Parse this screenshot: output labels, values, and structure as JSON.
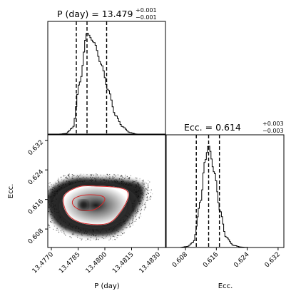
{
  "chart_data": [
    {
      "panel": "histogram-period",
      "type": "histogram",
      "title": {
        "label": "P (day)",
        "value": "13.479",
        "plus": "+0.001",
        "minus": "−0.001"
      },
      "x": [
        13.4774,
        13.4778,
        13.4782,
        13.4786,
        13.479,
        13.4794,
        13.4798,
        13.4802,
        13.4806,
        13.481,
        13.4814,
        13.4818
      ],
      "density": [
        0.0,
        0.005,
        0.06,
        0.5,
        0.97,
        0.88,
        0.67,
        0.42,
        0.18,
        0.07,
        0.015,
        0.0
      ],
      "quantiles": [
        13.4784,
        13.479,
        13.4801
      ],
      "xlim": [
        13.4768,
        13.4834
      ]
    },
    {
      "panel": "histogram-ecc",
      "type": "histogram",
      "title": {
        "label": "Ecc.",
        "value": "0.614",
        "plus": "+0.003",
        "minus": "−0.003"
      },
      "x": [
        0.6065,
        0.6085,
        0.61,
        0.612,
        0.613,
        0.614,
        0.6155,
        0.617,
        0.6185,
        0.6205,
        0.6225,
        0.6245
      ],
      "density": [
        0.0,
        0.01,
        0.05,
        0.45,
        0.82,
        0.98,
        0.72,
        0.35,
        0.1,
        0.02,
        0.004,
        0.0
      ],
      "quantiles": [
        0.6108,
        0.614,
        0.6168
      ],
      "xlim": [
        0.603,
        0.6335
      ],
      "xticks": [
        "0.608",
        "0.616",
        "0.624",
        "0.632"
      ],
      "xlabel": "Ecc."
    },
    {
      "panel": "joint-density",
      "type": "scatter",
      "xlabel": "P (day)",
      "ylabel": "Ecc.",
      "xlim": [
        13.4768,
        13.4834
      ],
      "ylim": [
        0.603,
        0.6335
      ],
      "xticks": [
        "13.4770",
        "13.4785",
        "13.4800",
        "13.4815",
        "13.4830"
      ],
      "yticks": [
        "0.608",
        "0.616",
        "0.624",
        "0.632"
      ],
      "density_peak": {
        "x": 13.4788,
        "y": 0.6145
      },
      "contours": [
        {
          "color": "#d62728",
          "x": [
            13.4778,
            13.4786,
            13.4796,
            13.4806,
            13.4812,
            13.4813,
            13.4809,
            13.4802,
            13.479,
            13.4781,
            13.4777
          ],
          "y": [
            0.6175,
            0.6195,
            0.6196,
            0.6193,
            0.6185,
            0.6165,
            0.6128,
            0.6096,
            0.6094,
            0.6111,
            0.6145
          ]
        },
        {
          "color": "#d62728",
          "x": [
            13.4783,
            13.4789,
            13.4797,
            13.48,
            13.4798,
            13.4793,
            13.4786,
            13.4782
          ],
          "y": [
            0.6163,
            0.6172,
            0.6171,
            0.6162,
            0.6145,
            0.6131,
            0.6132,
            0.6147
          ]
        }
      ],
      "colors": {
        "density": "#1a1a1a",
        "contour": "#d62728"
      }
    }
  ]
}
